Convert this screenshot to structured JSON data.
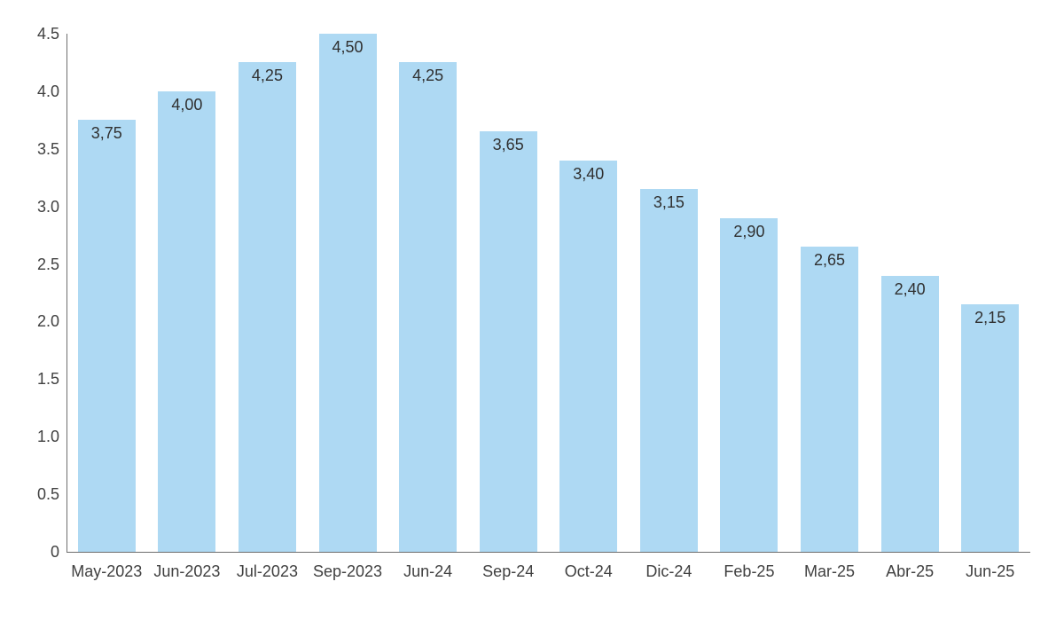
{
  "chart_data": {
    "type": "bar",
    "categories": [
      "May-2023",
      "Jun-2023",
      "Jul-2023",
      "Sep-2023",
      "Jun-24",
      "Sep-24",
      "Oct-24",
      "Dic-24",
      "Feb-25",
      "Mar-25",
      "Abr-25",
      "Jun-25"
    ],
    "values": [
      3.75,
      4.0,
      4.25,
      4.5,
      4.25,
      3.65,
      3.4,
      3.15,
      2.9,
      2.65,
      2.4,
      2.15
    ],
    "value_labels": [
      "3,75",
      "4,00",
      "4,25",
      "4,50",
      "4,25",
      "3,65",
      "3,40",
      "3,15",
      "2,90",
      "2,65",
      "2,40",
      "2,15"
    ],
    "title": "",
    "xlabel": "",
    "ylabel": "",
    "ylim": [
      0,
      4.5
    ],
    "y_ticks": [
      {
        "value": 0,
        "label": "0"
      },
      {
        "value": 0.5,
        "label": "0.5"
      },
      {
        "value": 1.0,
        "label": "1.0"
      },
      {
        "value": 1.5,
        "label": "1.5"
      },
      {
        "value": 2.0,
        "label": "2.0"
      },
      {
        "value": 2.5,
        "label": "2.5"
      },
      {
        "value": 3.0,
        "label": "3.0"
      },
      {
        "value": 3.5,
        "label": "3.5"
      },
      {
        "value": 4.0,
        "label": "4.0"
      },
      {
        "value": 4.5,
        "label": "4.5"
      }
    ],
    "grid": false,
    "legend": null,
    "bar_color": "#aed9f3",
    "label_color": "#303030",
    "axis_line_color": "#6e6e6e"
  }
}
